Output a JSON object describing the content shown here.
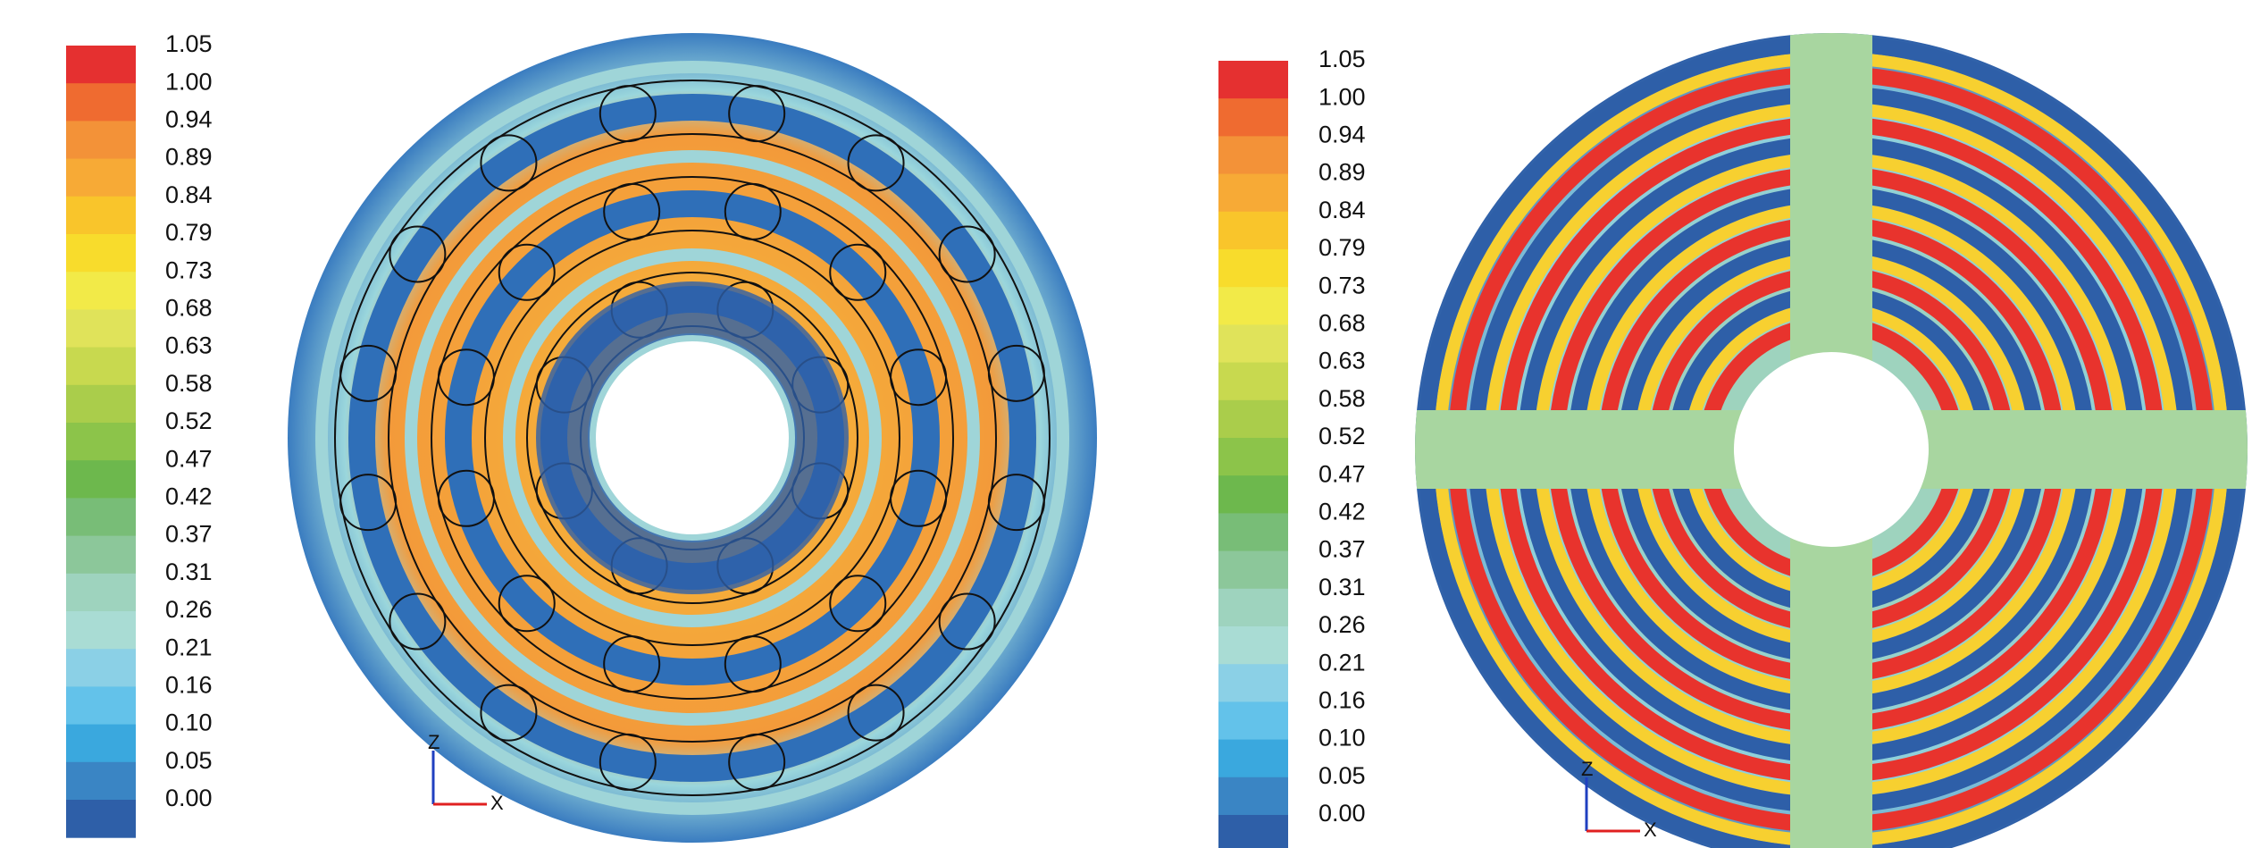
{
  "panels": [
    {
      "colorbar": {
        "labels": [
          "1.05",
          "1.00",
          "0.94",
          "0.89",
          "0.84",
          "0.79",
          "0.73",
          "0.68",
          "0.63",
          "0.58",
          "0.52",
          "0.47",
          "0.42",
          "0.37",
          "0.31",
          "0.26",
          "0.21",
          "0.16",
          "0.10",
          "0.05",
          "0.00"
        ],
        "colors": [
          "#e53030",
          "#ef6b30",
          "#f39238",
          "#f7aa36",
          "#f9c52b",
          "#f8dc2c",
          "#f2ea48",
          "#e0e35a",
          "#c8d94f",
          "#aacd4b",
          "#8cc44a",
          "#6db84d",
          "#78bd77",
          "#8cc79a",
          "#9ed3be",
          "#a9dcd4",
          "#8bd0e6",
          "#63c2ea",
          "#3aa8de",
          "#3a85c4",
          "#2e5fa8"
        ]
      },
      "triad": [
        "Z",
        "X"
      ]
    },
    {
      "colorbar": {
        "labels": [
          "1.05",
          "1.00",
          "0.94",
          "0.89",
          "0.84",
          "0.79",
          "0.73",
          "0.68",
          "0.63",
          "0.58",
          "0.52",
          "0.47",
          "0.42",
          "0.37",
          "0.31",
          "0.26",
          "0.21",
          "0.16",
          "0.10",
          "0.05",
          "0.00"
        ],
        "colors": [
          "#e53030",
          "#ef6b30",
          "#f39238",
          "#f7aa36",
          "#f9c52b",
          "#f8dc2c",
          "#f2ea48",
          "#e0e35a",
          "#c8d94f",
          "#aacd4b",
          "#8cc44a",
          "#6db84d",
          "#78bd77",
          "#8cc79a",
          "#9ed3be",
          "#a9dcd4",
          "#8bd0e6",
          "#63c2ea",
          "#3aa8de",
          "#3a85c4",
          "#2e5fa8"
        ]
      },
      "triad": [
        "Z",
        "X"
      ]
    }
  ]
}
